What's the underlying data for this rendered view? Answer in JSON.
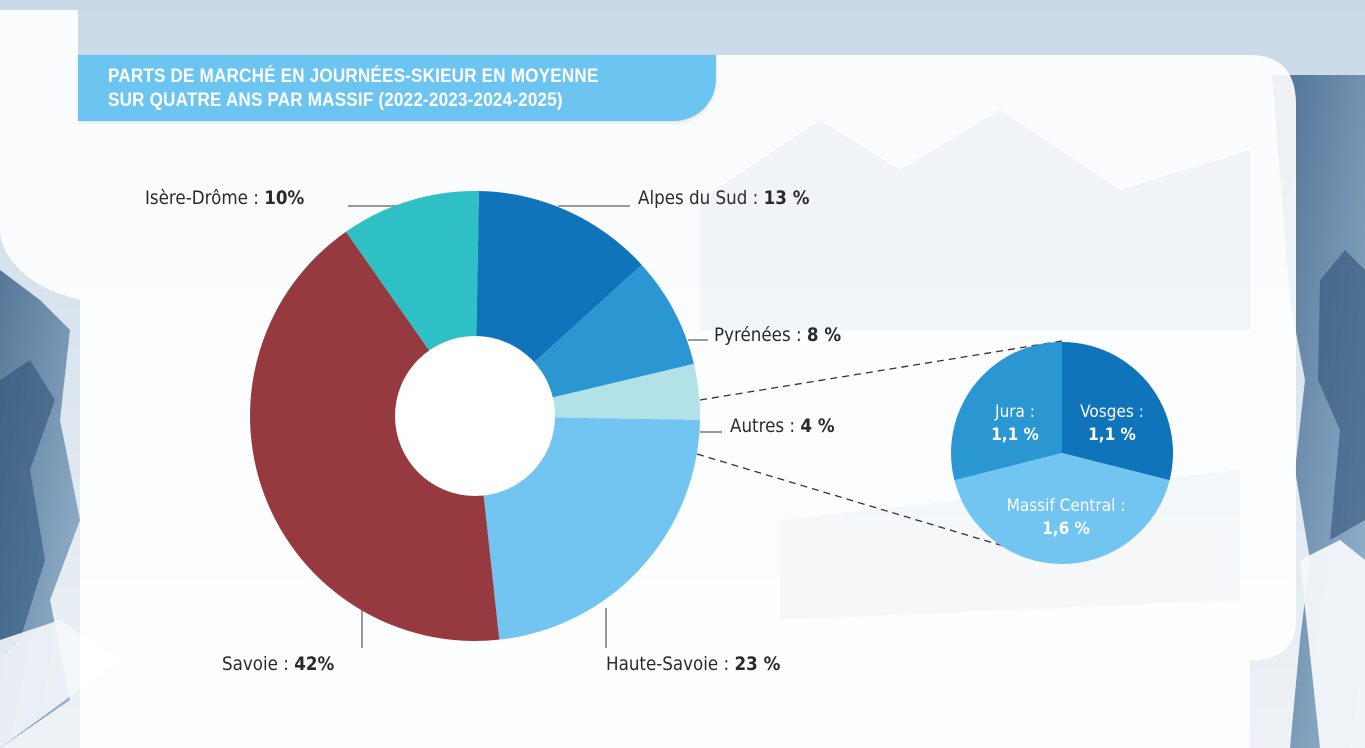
{
  "chart_data": [
    {
      "type": "pie",
      "donut": true,
      "title_lines": [
        "PARTS DE MARCHÉ EN JOURNÉES-SKIEUR EN MOYENNE",
        "SUR QUATRE ANS PAR MASSIF (2022-2023-2024-2025)"
      ],
      "slices": [
        {
          "label": "Alpes du Sud :",
          "display": "13 %",
          "value": 13,
          "color": "#1074bb"
        },
        {
          "label": "Pyrénées :",
          "display": "8 %",
          "value": 8,
          "color": "#2b97d2"
        },
        {
          "label": "Autres :",
          "display": "4 %",
          "value": 4,
          "color": "#b2e1e8"
        },
        {
          "label": "Haute-Savoie :",
          "display": "23 %",
          "value": 23,
          "color": "#72c5f0"
        },
        {
          "label": "Savoie :",
          "display": "42%",
          "value": 42,
          "color": "#973a40"
        },
        {
          "label": "Isère-Drôme :",
          "display": "10%",
          "value": 10,
          "color": "#2ec0c5"
        }
      ]
    },
    {
      "type": "pie",
      "breakdown_of": "Autres",
      "slices": [
        {
          "label": "Vosges :",
          "display": "1,1 %",
          "value": 1.1,
          "color": "#1074bb"
        },
        {
          "label": "Massif Central :",
          "display": "1,6 %",
          "value": 1.6,
          "color": "#72c5f0"
        },
        {
          "label": "Jura :",
          "display": "1,1 %",
          "value": 1.1,
          "color": "#2b97d2"
        }
      ]
    }
  ],
  "colors": {
    "banner": "#6cc4f0",
    "card": "#ffffff",
    "leader_line": "#9a9a9a"
  }
}
